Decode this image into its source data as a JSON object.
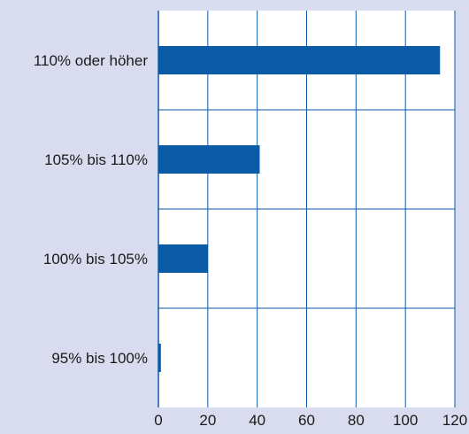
{
  "chart_data": {
    "type": "bar",
    "orientation": "horizontal",
    "categories": [
      "110% oder höher",
      "105% bis 110%",
      "100% bis 105%",
      "95% bis 100%"
    ],
    "values": [
      114,
      41,
      20,
      1
    ],
    "xlim": [
      0,
      120
    ],
    "xticks": [
      0,
      20,
      40,
      60,
      80,
      100,
      120
    ],
    "grid": true,
    "colors": {
      "bar": "#0a5aa6",
      "plot_bg": "#ffffff",
      "page_bg": "#d8dcee",
      "grid": "#0a5aa6"
    }
  }
}
